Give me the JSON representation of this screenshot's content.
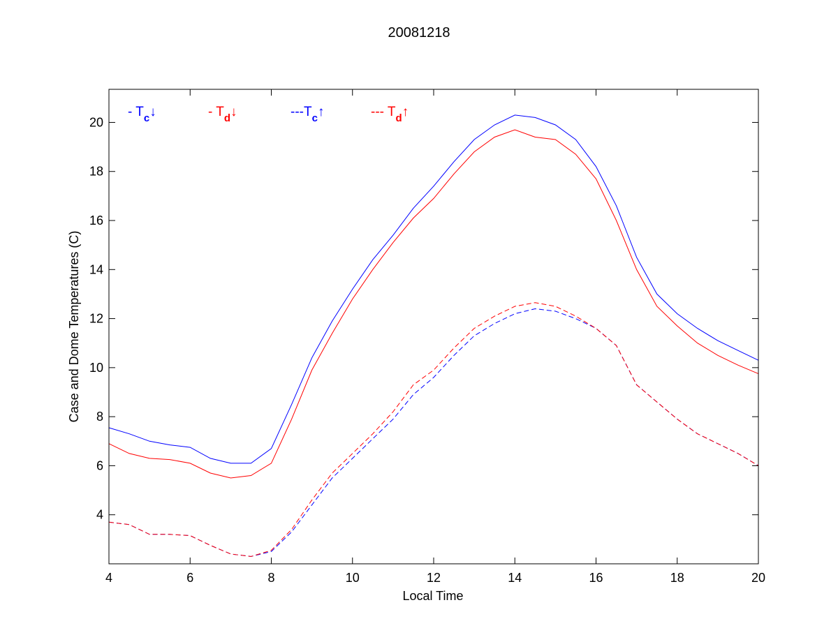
{
  "chart_data": {
    "type": "line",
    "title": "20081218",
    "xlabel": "Local Time",
    "ylabel": "Case and Dome Temperatures (C)",
    "xlim": [
      4,
      20
    ],
    "ylim": [
      2.0,
      21.35
    ],
    "xticks": [
      4,
      6,
      8,
      10,
      12,
      14,
      16,
      18,
      20
    ],
    "yticks": [
      4,
      6,
      8,
      10,
      12,
      14,
      16,
      18,
      20
    ],
    "grid": false,
    "legend": [
      {
        "prefix": "- ",
        "main": "T",
        "sub": "c",
        "arrow": "↓",
        "color": "#0000ff"
      },
      {
        "prefix": "- ",
        "main": "T",
        "sub": "d",
        "arrow": "↓",
        "color": "#ff0000"
      },
      {
        "prefix": "---",
        "main": "T",
        "sub": "c",
        "arrow": "↑",
        "color": "#0000ff"
      },
      {
        "prefix": "--- ",
        "main": "T",
        "sub": "d",
        "arrow": "↑",
        "color": "#ff0000"
      }
    ],
    "x": [
      4,
      4.5,
      5,
      5.5,
      6,
      6.5,
      7,
      7.5,
      8,
      8.5,
      9,
      9.5,
      10,
      10.5,
      11,
      11.5,
      12,
      12.5,
      13,
      13.5,
      14,
      14.5,
      15,
      15.5,
      16,
      16.5,
      17,
      17.5,
      18,
      18.5,
      19,
      19.5,
      20
    ],
    "series": [
      {
        "name": "Tc down",
        "color": "#0000ff",
        "dash": false,
        "values": [
          7.55,
          7.3,
          7.0,
          6.85,
          6.75,
          6.3,
          6.1,
          6.1,
          6.7,
          8.5,
          10.4,
          11.9,
          13.2,
          14.4,
          15.4,
          16.5,
          17.4,
          18.4,
          19.3,
          19.9,
          20.3,
          20.2,
          19.9,
          19.3,
          18.2,
          16.6,
          14.5,
          13.0,
          12.2,
          11.6,
          11.1,
          10.7,
          10.3
        ]
      },
      {
        "name": "Td down",
        "color": "#ff0000",
        "dash": false,
        "values": [
          6.9,
          6.5,
          6.3,
          6.25,
          6.1,
          5.7,
          5.5,
          5.6,
          6.1,
          7.9,
          9.9,
          11.4,
          12.8,
          14.0,
          15.1,
          16.1,
          16.9,
          17.9,
          18.8,
          19.4,
          19.7,
          19.4,
          19.3,
          18.7,
          17.7,
          16.0,
          14.0,
          12.5,
          11.7,
          11.0,
          10.5,
          10.1,
          9.75
        ]
      },
      {
        "name": "Tc up",
        "color": "#0000ff",
        "dash": true,
        "values": [
          3.7,
          3.6,
          3.2,
          3.2,
          3.15,
          2.75,
          2.4,
          2.3,
          2.5,
          3.3,
          4.4,
          5.5,
          6.3,
          7.1,
          7.9,
          8.9,
          9.6,
          10.5,
          11.3,
          11.8,
          12.2,
          12.4,
          12.3,
          12.0,
          11.6,
          10.9,
          9.3,
          8.6,
          7.9,
          7.3,
          6.9,
          6.5,
          6.0
        ]
      },
      {
        "name": "Td up",
        "color": "#ff0000",
        "dash": true,
        "values": [
          3.7,
          3.6,
          3.2,
          3.2,
          3.15,
          2.75,
          2.4,
          2.3,
          2.55,
          3.4,
          4.6,
          5.7,
          6.5,
          7.3,
          8.2,
          9.3,
          9.9,
          10.8,
          11.6,
          12.1,
          12.5,
          12.65,
          12.5,
          12.1,
          11.6,
          10.9,
          9.3,
          8.6,
          7.9,
          7.3,
          6.9,
          6.5,
          6.0
        ]
      }
    ]
  }
}
